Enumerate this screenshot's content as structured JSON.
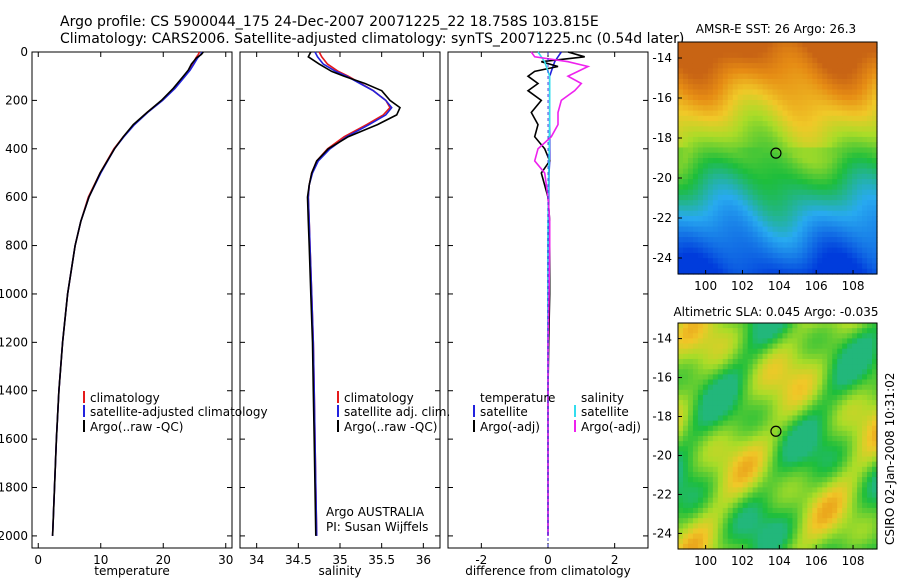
{
  "figure": {
    "title_line1": "Argo profile: CS 5900044_175 24-Dec-2007 20071225_22 18.758S 103.815E",
    "title_line2": "Climatology: CARS2006. Satellite-adjusted climatology: synTS_20071225.nc (0.54d later)",
    "side_label": "CSIRO 02-Jan-2008 10:31:02",
    "colors": {
      "climatology": "#e41a1c",
      "satellite": "#2222dd",
      "argo": "#000000",
      "satellite_salinity": "#33ddee",
      "argo_adj_salinity": "#ee22ee"
    }
  },
  "chart_data": [
    {
      "type": "line",
      "name": "temperature-profile",
      "xlabel": "temperature",
      "ylabel": "",
      "xlim": [
        -1,
        31
      ],
      "ylim": [
        2050,
        0
      ],
      "xticks": [
        "0",
        "10",
        "20",
        "30"
      ],
      "xtick_values": [
        0,
        10,
        20,
        30
      ],
      "yticks": [
        "0",
        "200",
        "400",
        "600",
        "800",
        "1000",
        "1200",
        "1400",
        "1600",
        "1800",
        "2000"
      ],
      "ytick_values": [
        0,
        200,
        400,
        600,
        800,
        1000,
        1200,
        1400,
        1600,
        1800,
        2000
      ],
      "depth": [
        0,
        10,
        25,
        50,
        75,
        100,
        150,
        200,
        250,
        300,
        350,
        400,
        500,
        600,
        700,
        800,
        1000,
        1200,
        1400,
        1600,
        1800,
        2000
      ],
      "series": [
        {
          "name": "climatology",
          "values": [
            25.8,
            25.6,
            25.2,
            24.7,
            24.1,
            23.4,
            21.8,
            19.8,
            17.4,
            15.3,
            13.6,
            12.1,
            9.9,
            8.0,
            6.8,
            5.9,
            4.7,
            3.9,
            3.3,
            2.9,
            2.6,
            2.3
          ]
        },
        {
          "name": "satellite-adjusted climatology",
          "values": [
            26.2,
            26.0,
            25.5,
            24.9,
            24.3,
            23.5,
            21.9,
            19.9,
            17.5,
            15.4,
            13.7,
            12.2,
            10.0,
            8.1,
            6.8,
            5.9,
            4.7,
            3.9,
            3.3,
            2.9,
            2.6,
            2.3
          ]
        },
        {
          "name": "Argo(..raw -QC)",
          "values": [
            26.4,
            26.1,
            25.3,
            24.5,
            24.0,
            23.2,
            21.6,
            19.7,
            17.4,
            15.2,
            13.6,
            12.2,
            9.9,
            8.1,
            6.8,
            5.9,
            4.7,
            3.9,
            3.3,
            2.9,
            2.6,
            2.3
          ]
        }
      ],
      "legend": [
        "climatology",
        "satellite-adjusted climatology",
        "Argo(..raw -QC)"
      ]
    },
    {
      "type": "line",
      "name": "salinity-profile",
      "xlabel": "salinity",
      "xlim": [
        33.8,
        36.2
      ],
      "ylim": [
        2050,
        0
      ],
      "xticks": [
        "34",
        "34.5",
        "35",
        "35.5",
        "36"
      ],
      "xtick_values": [
        34,
        34.5,
        35,
        35.5,
        36
      ],
      "depth": [
        0,
        20,
        50,
        80,
        100,
        130,
        160,
        200,
        230,
        260,
        300,
        350,
        400,
        450,
        500,
        550,
        600,
        700,
        800,
        1000,
        1200,
        1400,
        1600,
        1800,
        2000
      ],
      "series": [
        {
          "name": "climatology",
          "values": [
            34.75,
            34.78,
            34.85,
            34.98,
            35.1,
            35.25,
            35.4,
            35.55,
            35.6,
            35.52,
            35.32,
            35.05,
            34.85,
            34.72,
            34.66,
            34.63,
            34.62,
            34.63,
            34.64,
            34.66,
            34.68,
            34.69,
            34.7,
            34.71,
            34.72
          ]
        },
        {
          "name": "satellite adj. clim.",
          "values": [
            34.7,
            34.73,
            34.8,
            34.95,
            35.08,
            35.24,
            35.4,
            35.55,
            35.62,
            35.55,
            35.35,
            35.08,
            34.88,
            34.74,
            34.67,
            34.63,
            34.62,
            34.63,
            34.64,
            34.66,
            34.68,
            34.69,
            34.7,
            34.71,
            34.72
          ]
        },
        {
          "name": "Argo(..raw -QC)",
          "values": [
            34.65,
            34.62,
            34.75,
            34.9,
            35.05,
            35.3,
            35.5,
            35.6,
            35.72,
            35.68,
            35.45,
            35.1,
            34.86,
            34.72,
            34.66,
            34.63,
            34.61,
            34.62,
            34.63,
            34.65,
            34.67,
            34.68,
            34.69,
            34.7,
            34.71
          ]
        }
      ],
      "legend": [
        "climatology",
        "satellite adj. clim.",
        "Argo(..raw -QC)"
      ],
      "annotations": [
        "Argo AUSTRALIA",
        "PI: Susan Wijffels"
      ]
    },
    {
      "type": "line",
      "name": "difference-profile",
      "xlabel": "difference from climatology",
      "xlim": [
        -3,
        3
      ],
      "ylim": [
        2050,
        0
      ],
      "xticks": [
        "-2",
        "0",
        "2"
      ],
      "xtick_values": [
        -2,
        0,
        2
      ],
      "depth": [
        0,
        20,
        40,
        60,
        80,
        100,
        130,
        160,
        200,
        250,
        300,
        350,
        400,
        450,
        500,
        600,
        700,
        800,
        1000,
        1200,
        1400,
        1600,
        1800,
        2000
      ],
      "series": [
        {
          "name": "temperature satellite",
          "values": [
            0.4,
            0.3,
            0.2,
            0.15,
            0.1,
            0.05,
            0.05,
            0.05,
            0.05,
            0.05,
            0.05,
            0.05,
            0.05,
            0.05,
            0.03,
            0.02,
            0.01,
            0.0,
            0.0,
            0.0,
            0.0,
            0.0,
            0.0,
            0.0
          ]
        },
        {
          "name": "temperature Argo(-adj)",
          "values": [
            0.6,
            1.1,
            -0.2,
            0.3,
            -0.4,
            -0.6,
            -0.3,
            -0.6,
            -0.2,
            -0.5,
            -0.3,
            -0.4,
            -0.1,
            0.05,
            -0.2,
            0.0,
            0.05,
            0.05,
            0.05,
            0.02,
            0.0,
            0.0,
            0.0,
            0.0
          ]
        },
        {
          "name": "salinity satellite",
          "values": [
            -0.3,
            -0.2,
            -0.1,
            -0.05,
            0.0,
            0.05,
            0.05,
            0.05,
            0.05,
            0.05,
            0.05,
            0.04,
            0.04,
            0.03,
            0.02,
            0.01,
            0.0,
            0.0,
            0.0,
            0.0,
            0.0,
            0.0,
            0.0,
            0.0
          ]
        },
        {
          "name": "salinity Argo(-adj)",
          "values": [
            -0.5,
            -0.4,
            0.6,
            1.2,
            0.9,
            0.6,
            1.0,
            0.8,
            0.4,
            0.3,
            0.3,
            0.1,
            -0.3,
            -0.4,
            -0.1,
            0.0,
            0.05,
            0.05,
            0.03,
            0.0,
            0.0,
            0.0,
            0.0,
            0.0
          ]
        }
      ],
      "legend": {
        "temperature_header": "temperature",
        "salinity_header": "salinity",
        "temperature": [
          "satellite",
          "Argo(-adj)"
        ],
        "salinity": [
          "satellite",
          "Argo(-adj)"
        ]
      }
    },
    {
      "type": "heatmap",
      "name": "sst-map",
      "title": "AMSR-E SST: 26 Argo: 26.3",
      "xticks": [
        "100",
        "102",
        "104",
        "106",
        "108"
      ],
      "xtick_values": [
        100,
        102,
        104,
        106,
        108
      ],
      "yticks": [
        "-14",
        "-16",
        "-18",
        "-20",
        "-22",
        "-24"
      ],
      "ytick_values": [
        -14,
        -16,
        -18,
        -20,
        -22,
        -24
      ],
      "xlim": [
        98.5,
        109.3
      ],
      "ylim": [
        -24.8,
        -13.2
      ],
      "marker": {
        "lon": 103.815,
        "lat": -18.758
      },
      "sst_value": 26,
      "argo_value": 26.3
    },
    {
      "type": "heatmap",
      "name": "sla-map",
      "title": "Altimetric SLA: 0.045 Argo: -0.035",
      "xticks": [
        "100",
        "102",
        "104",
        "106",
        "108"
      ],
      "xtick_values": [
        100,
        102,
        104,
        106,
        108
      ],
      "yticks": [
        "-14",
        "-16",
        "-18",
        "-20",
        "-22",
        "-24"
      ],
      "ytick_values": [
        -14,
        -16,
        -18,
        -20,
        -22,
        -24
      ],
      "xlim": [
        98.5,
        109.3
      ],
      "ylim": [
        -24.8,
        -13.2
      ],
      "marker": {
        "lon": 103.815,
        "lat": -18.758
      },
      "sla_value": 0.045,
      "argo_value": -0.035
    }
  ]
}
